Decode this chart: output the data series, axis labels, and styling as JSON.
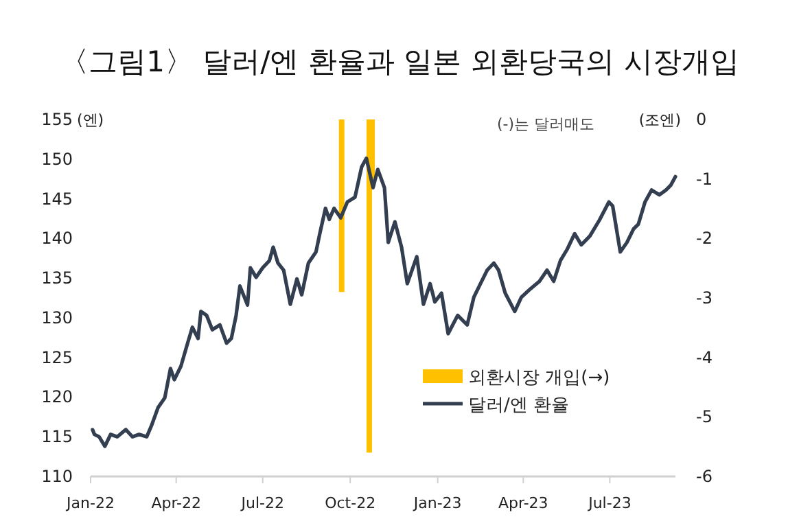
{
  "chart_data": {
    "type": "line",
    "title": "〈그림1〉 달러/엔 환율과 일본 외환당국의 시장개입",
    "ylabel": "(엔)",
    "y2label": "(조엔)",
    "annotations": [
      "(-)는 달러매도"
    ],
    "xlim": [
      "2022-01-01",
      "2023-09-08"
    ],
    "xticks": [
      {
        "value": "2022-01-01",
        "label": "Jan-22"
      },
      {
        "value": "2022-04-01",
        "label": "Apr-22"
      },
      {
        "value": "2022-07-01",
        "label": "Jul-22"
      },
      {
        "value": "2022-10-01",
        "label": "Oct-22"
      },
      {
        "value": "2023-01-01",
        "label": "Jan-23"
      },
      {
        "value": "2023-04-01",
        "label": "Apr-23"
      },
      {
        "value": "2023-07-01",
        "label": "Jul-23"
      }
    ],
    "ylim": [
      110,
      155
    ],
    "yticks": [
      110,
      115,
      120,
      125,
      130,
      135,
      140,
      145,
      150,
      155
    ],
    "y2lim": [
      -6,
      0
    ],
    "y2ticks": [
      -6,
      -5,
      -4,
      -3,
      -2,
      -1,
      0
    ],
    "legend": "bottom right",
    "series": [
      {
        "name": "외환시장 개입(→)",
        "type": "bar",
        "axis": "y2",
        "color": "#ffc000",
        "x": [
          "2022-09-22",
          "2022-10-21",
          "2022-10-24"
        ],
        "values": [
          -2.9,
          -5.6,
          -1.0
        ]
      },
      {
        "name": "달러/엔 환율",
        "color": "#333f50",
        "x": [
          "2022-01-03",
          "2022-01-05",
          "2022-01-10",
          "2022-01-16",
          "2022-01-22",
          "2022-01-29",
          "2022-02-07",
          "2022-02-14",
          "2022-02-21",
          "2022-03-01",
          "2022-03-06",
          "2022-03-13",
          "2022-03-20",
          "2022-03-26",
          "2022-03-30",
          "2022-04-06",
          "2022-04-13",
          "2022-04-18",
          "2022-04-24",
          "2022-04-27",
          "2022-05-03",
          "2022-05-09",
          "2022-05-17",
          "2022-05-24",
          "2022-05-29",
          "2022-06-03",
          "2022-06-07",
          "2022-06-15",
          "2022-06-18",
          "2022-06-24",
          "2022-07-01",
          "2022-07-08",
          "2022-07-12",
          "2022-07-17",
          "2022-07-23",
          "2022-07-30",
          "2022-08-06",
          "2022-08-11",
          "2022-08-18",
          "2022-08-26",
          "2022-08-30",
          "2022-09-05",
          "2022-09-09",
          "2022-09-14",
          "2022-09-21",
          "2022-09-28",
          "2022-10-06",
          "2022-10-13",
          "2022-10-18",
          "2022-10-25",
          "2022-10-30",
          "2022-11-06",
          "2022-11-10",
          "2022-11-17",
          "2022-11-24",
          "2022-11-30",
          "2022-12-10",
          "2022-12-17",
          "2022-12-24",
          "2022-12-29",
          "2023-01-05",
          "2023-01-12",
          "2023-01-22",
          "2023-02-01",
          "2023-02-08",
          "2023-02-15",
          "2023-02-22",
          "2023-03-01",
          "2023-03-06",
          "2023-03-13",
          "2023-03-23",
          "2023-03-30",
          "2023-04-09",
          "2023-04-18",
          "2023-04-26",
          "2023-05-03",
          "2023-05-10",
          "2023-05-17",
          "2023-05-25",
          "2023-06-01",
          "2023-06-10",
          "2023-06-20",
          "2023-06-30",
          "2023-07-04",
          "2023-07-12",
          "2023-07-19",
          "2023-07-26",
          "2023-07-31",
          "2023-08-07",
          "2023-08-14",
          "2023-08-22",
          "2023-08-29",
          "2023-09-03",
          "2023-09-08"
        ],
        "values": [
          115.9,
          115.3,
          115.0,
          113.8,
          115.3,
          115.0,
          115.9,
          115.0,
          115.3,
          115.0,
          116.4,
          118.7,
          119.9,
          123.6,
          122.2,
          123.9,
          126.8,
          128.8,
          127.4,
          130.8,
          130.3,
          128.5,
          129.1,
          126.8,
          127.4,
          130.3,
          134.0,
          131.6,
          136.3,
          135.1,
          136.3,
          137.2,
          138.9,
          136.9,
          136.0,
          131.7,
          134.9,
          132.9,
          136.9,
          138.3,
          140.6,
          143.8,
          142.4,
          143.8,
          142.6,
          144.6,
          145.2,
          149.0,
          150.1,
          146.4,
          148.7,
          146.4,
          139.5,
          142.1,
          138.9,
          134.3,
          137.7,
          131.7,
          134.3,
          132.0,
          133.1,
          128.0,
          130.3,
          129.1,
          132.6,
          134.3,
          136.0,
          136.9,
          136.0,
          133.1,
          130.8,
          132.6,
          133.7,
          134.6,
          136.0,
          134.6,
          137.2,
          138.6,
          140.6,
          139.2,
          140.3,
          142.3,
          144.6,
          144.1,
          138.3,
          139.5,
          141.2,
          141.8,
          144.6,
          146.1,
          145.5,
          146.1,
          146.7,
          147.8
        ]
      }
    ]
  }
}
